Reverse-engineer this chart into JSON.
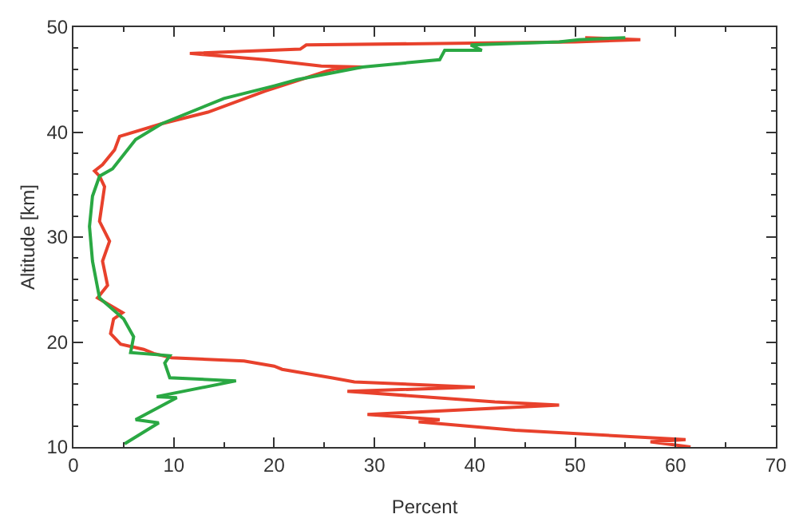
{
  "chart_data": {
    "type": "line",
    "xlabel": "Percent",
    "ylabel": "Altitude [km]",
    "xlim": [
      0,
      70
    ],
    "xticks": [
      0,
      10,
      20,
      30,
      40,
      50,
      60,
      70
    ],
    "ylim": [
      10,
      50
    ],
    "yticks": [
      10,
      20,
      30,
      40,
      50
    ],
    "legend": false,
    "marker": "none",
    "line_style": "solid",
    "series": [
      {
        "color": "#e8412c",
        "x": [
          61.5,
          57.5,
          61,
          44,
          34.4,
          36.5,
          29.3,
          48.4,
          42,
          27.3,
          40,
          28,
          25.7,
          20.8,
          20,
          17,
          9.8,
          8,
          7,
          4.7,
          3.7,
          4.0,
          4.9,
          2.4,
          3.4,
          2.9,
          3.6,
          2.6,
          3.1,
          2.6,
          2.1,
          2.9,
          4.1,
          4.6,
          8.8,
          13.4,
          19.1,
          25.2,
          26,
          28.8,
          24.7,
          19.1,
          11.6,
          22.6,
          23.2,
          50,
          56.5,
          51
        ],
        "values": [
          10,
          10.5,
          10.7,
          11.6,
          12.4,
          12.6,
          13.1,
          14.0,
          14.3,
          15.3,
          15.7,
          16.2,
          16.6,
          17.4,
          17.7,
          18.2,
          18.5,
          18.9,
          19.3,
          19.8,
          20.8,
          22.2,
          22.8,
          24.2,
          25.4,
          27.7,
          29.6,
          31.5,
          34.8,
          35.8,
          36.3,
          36.9,
          38.3,
          39.6,
          40.8,
          41.9,
          43.9,
          45.8,
          46.0,
          46.2,
          46.3,
          46.9,
          47.5,
          47.9,
          48.3,
          48.6,
          48.8,
          49.0
        ]
      },
      {
        "color": "#2aa843",
        "x": [
          5.1,
          8.5,
          6.2,
          10.3,
          8.3,
          16.2,
          9.6,
          9.1,
          9.6,
          5.7,
          6.0,
          5.0,
          2.6,
          1.9,
          1.6,
          1.9,
          2.6,
          3.9,
          6.2,
          8.8,
          15,
          20,
          22.3,
          28.8,
          36.5,
          37,
          40.7,
          39.6,
          48.4,
          50.4,
          55
        ],
        "values": [
          10.3,
          12.3,
          12.6,
          14.7,
          14.8,
          16.3,
          16.6,
          18.0,
          18.7,
          19.0,
          20.5,
          22.2,
          24.2,
          27.7,
          31.0,
          33.9,
          35.8,
          36.5,
          39.3,
          40.8,
          43.2,
          44.4,
          45.0,
          46.2,
          46.9,
          47.8,
          47.8,
          48.3,
          48.6,
          48.8,
          49.0
        ]
      }
    ]
  }
}
